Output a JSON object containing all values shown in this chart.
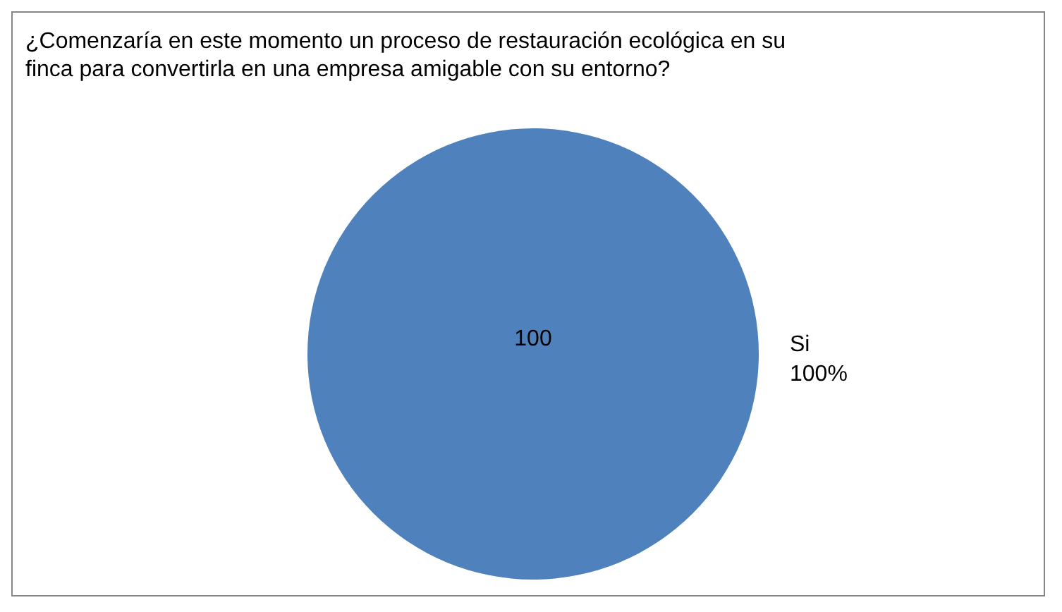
{
  "chart_data": {
    "type": "pie",
    "title": "¿Comenzaría en este momento un proceso de restauración ecológica en su finca para convertirla en una empresa amigable con su entorno?",
    "categories": [
      "Si"
    ],
    "values": [
      100
    ],
    "colors": [
      "#4f81bd"
    ],
    "data_labels": true,
    "annotations": [
      "100%"
    ]
  }
}
